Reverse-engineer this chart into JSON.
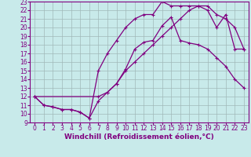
{
  "background_color": "#c8eaea",
  "line_color": "#800080",
  "grid_color": "#a0b8b8",
  "xlabel": "Windchill (Refroidissement éolien,°C)",
  "xlabel_fontsize": 6.5,
  "tick_fontsize": 5.5,
  "xlim": [
    -0.5,
    23.5
  ],
  "ylim": [
    9,
    23
  ],
  "xticks": [
    0,
    1,
    2,
    3,
    4,
    5,
    6,
    7,
    8,
    9,
    10,
    11,
    12,
    13,
    14,
    15,
    16,
    17,
    18,
    19,
    20,
    21,
    22,
    23
  ],
  "yticks": [
    9,
    10,
    11,
    12,
    13,
    14,
    15,
    16,
    17,
    18,
    19,
    20,
    21,
    22,
    23
  ],
  "curve1_x": [
    0,
    1,
    2,
    3,
    4,
    5,
    6,
    7,
    8,
    9,
    10,
    11,
    12,
    13,
    14,
    15,
    16,
    17,
    18,
    19,
    20,
    21,
    22,
    23
  ],
  "curve1_y": [
    12,
    11,
    10.8,
    10.5,
    10.5,
    10.2,
    9.5,
    11.5,
    12.5,
    13.5,
    15.2,
    17.5,
    18.3,
    18.5,
    20.2,
    21.2,
    18.5,
    18.2,
    18,
    17.5,
    16.5,
    15.5,
    14,
    13
  ],
  "curve2_x": [
    0,
    1,
    2,
    3,
    4,
    5,
    6,
    7,
    8,
    9,
    10,
    11,
    12,
    13,
    14,
    15,
    16,
    17,
    18,
    19,
    20,
    21,
    22,
    23
  ],
  "curve2_y": [
    12,
    11,
    10.8,
    10.5,
    10.5,
    10.2,
    9.5,
    15,
    17,
    18.5,
    20,
    21,
    21.5,
    21.5,
    23,
    22.5,
    22.5,
    22.5,
    22.5,
    22,
    20,
    21.5,
    17.5,
    17.5
  ],
  "curve3_x": [
    0,
    7,
    8,
    9,
    10,
    11,
    12,
    13,
    14,
    15,
    16,
    17,
    18,
    19,
    20,
    21,
    22,
    23
  ],
  "curve3_y": [
    12,
    12,
    12.5,
    13.5,
    15,
    16,
    17,
    18,
    19,
    20,
    21,
    22,
    22.5,
    22.5,
    21.5,
    21,
    20,
    17.5
  ]
}
